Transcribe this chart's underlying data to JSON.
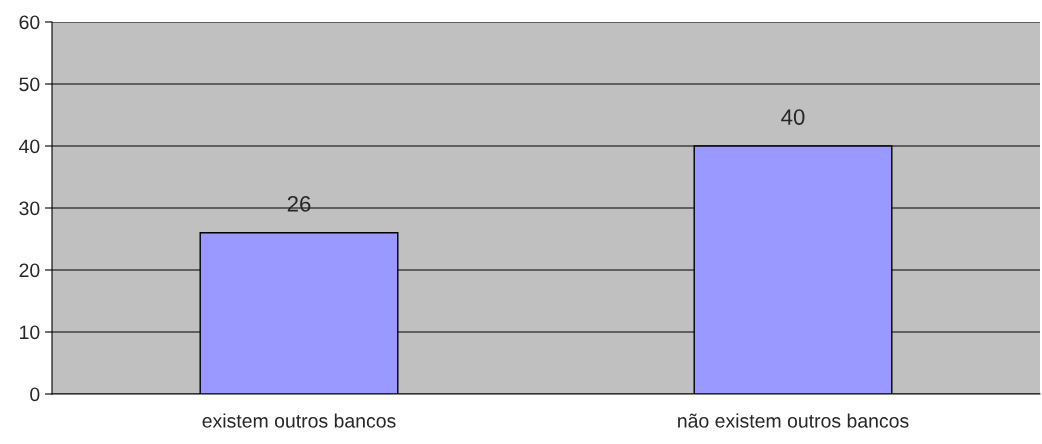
{
  "chart_data": {
    "type": "bar",
    "categories": [
      "existem outros bancos",
      "não existem outros bancos"
    ],
    "values": [
      26,
      40
    ],
    "color": "#9999ff",
    "ylim": [
      0,
      60
    ],
    "yticks": [
      0,
      10,
      20,
      30,
      40,
      50,
      60
    ],
    "grid": "y",
    "data_labels": true
  }
}
